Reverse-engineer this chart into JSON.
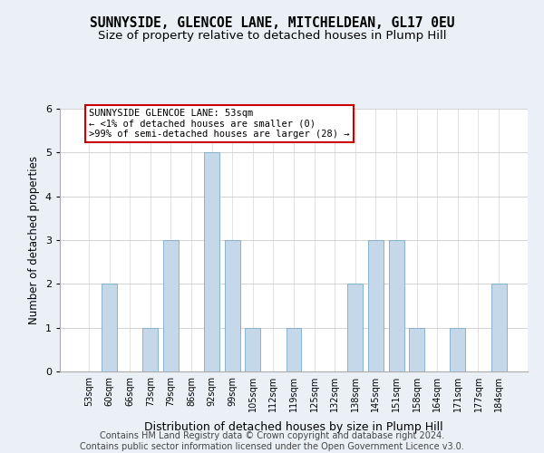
{
  "title": "SUNNYSIDE, GLENCOE LANE, MITCHELDEAN, GL17 0EU",
  "subtitle": "Size of property relative to detached houses in Plump Hill",
  "xlabel": "Distribution of detached houses by size in Plump Hill",
  "ylabel": "Number of detached properties",
  "categories": [
    "53sqm",
    "60sqm",
    "66sqm",
    "73sqm",
    "79sqm",
    "86sqm",
    "92sqm",
    "99sqm",
    "105sqm",
    "112sqm",
    "119sqm",
    "125sqm",
    "132sqm",
    "138sqm",
    "145sqm",
    "151sqm",
    "158sqm",
    "164sqm",
    "171sqm",
    "177sqm",
    "184sqm"
  ],
  "values": [
    0,
    2,
    0,
    1,
    3,
    0,
    5,
    3,
    1,
    0,
    1,
    0,
    0,
    2,
    3,
    3,
    1,
    0,
    1,
    0,
    2
  ],
  "bar_color": "#c5d8ea",
  "bar_edge_color": "#7aaac8",
  "annotation_box_text": "SUNNYSIDE GLENCOE LANE: 53sqm\n← <1% of detached houses are smaller (0)\n>99% of semi-detached houses are larger (28) →",
  "annotation_box_color": "#ffffff",
  "annotation_box_edge_color": "#cc0000",
  "ylim": [
    0,
    6
  ],
  "yticks": [
    0,
    1,
    2,
    3,
    4,
    5,
    6
  ],
  "background_color": "#eaf0f6",
  "plot_bg_color": "#ffffff",
  "footer_text": "Contains HM Land Registry data © Crown copyright and database right 2024.\nContains public sector information licensed under the Open Government Licence v3.0.",
  "title_fontsize": 10.5,
  "subtitle_fontsize": 9.5,
  "xlabel_fontsize": 9,
  "ylabel_fontsize": 8.5,
  "annotation_fontsize": 7.5,
  "footer_fontsize": 7
}
